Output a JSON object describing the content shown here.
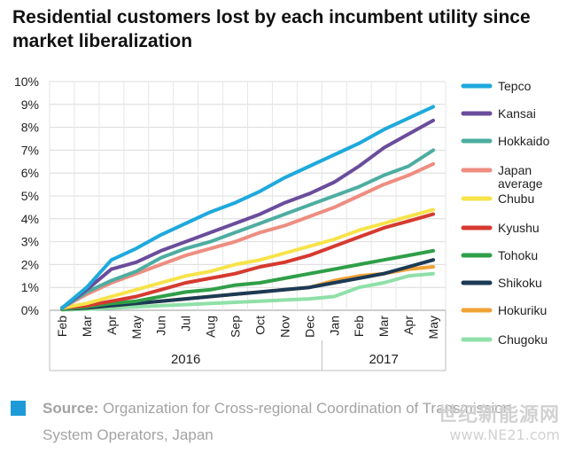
{
  "title": "Residential customers lost by each incumbent utility since market liberalization",
  "source": {
    "label": "Source:",
    "text": "Organization for Cross-regional Coordination of Transmission System Operators, Japan",
    "icon": "square-icon",
    "icon_color": "#1e9bd7"
  },
  "watermark": {
    "line1": "世纪新能源网",
    "line2": "www.NE21.com"
  },
  "chart_data": {
    "type": "line",
    "title": "Residential customers lost by each incumbent utility since market liberalization",
    "categories": [
      "Feb",
      "Mar",
      "Apr",
      "May",
      "Jun",
      "Jul",
      "Aug",
      "Sep",
      "Oct",
      "Nov",
      "Dec",
      "Jan",
      "Feb",
      "Mar",
      "Apr",
      "May"
    ],
    "year_groups": [
      {
        "label": "2016",
        "start": 0,
        "end": 10
      },
      {
        "label": "2017",
        "start": 11,
        "end": 15
      }
    ],
    "y_ticks": [
      "0%",
      "1%",
      "2%",
      "3%",
      "4%",
      "5%",
      "6%",
      "7%",
      "8%",
      "9%",
      "10%"
    ],
    "ylim": [
      0,
      10
    ],
    "grid": true,
    "legend_position": "right",
    "series": [
      {
        "name": "Tepco",
        "color": "#1ea9dc",
        "values": [
          0.1,
          1.0,
          2.2,
          2.7,
          3.3,
          3.8,
          4.3,
          4.7,
          5.2,
          5.8,
          6.3,
          6.8,
          7.3,
          7.9,
          8.4,
          8.9
        ]
      },
      {
        "name": "Kansai",
        "color": "#6a4c9c",
        "values": [
          0.1,
          0.9,
          1.8,
          2.1,
          2.6,
          3.0,
          3.4,
          3.8,
          4.2,
          4.7,
          5.1,
          5.6,
          6.3,
          7.1,
          7.7,
          8.3
        ]
      },
      {
        "name": "Hokkaido",
        "color": "#4dada0",
        "values": [
          0.1,
          0.8,
          1.3,
          1.7,
          2.3,
          2.7,
          3.0,
          3.4,
          3.8,
          4.2,
          4.6,
          5.0,
          5.4,
          5.9,
          6.3,
          7.0
        ]
      },
      {
        "name": "Japan average",
        "color": "#ee8d80",
        "values": [
          0.1,
          0.7,
          1.2,
          1.6,
          2.0,
          2.4,
          2.7,
          3.0,
          3.4,
          3.7,
          4.1,
          4.5,
          5.0,
          5.5,
          5.9,
          6.4
        ]
      },
      {
        "name": "Chubu",
        "color": "#f7e34a",
        "values": [
          0.1,
          0.3,
          0.6,
          0.9,
          1.2,
          1.5,
          1.7,
          2.0,
          2.2,
          2.5,
          2.8,
          3.1,
          3.5,
          3.8,
          4.1,
          4.4
        ]
      },
      {
        "name": "Kyushu",
        "color": "#d63a30",
        "values": [
          0.1,
          0.2,
          0.4,
          0.6,
          0.9,
          1.2,
          1.4,
          1.6,
          1.9,
          2.1,
          2.4,
          2.8,
          3.2,
          3.6,
          3.9,
          4.2
        ]
      },
      {
        "name": "Tohoku",
        "color": "#2f9f48",
        "values": [
          0.05,
          0.15,
          0.3,
          0.4,
          0.6,
          0.8,
          0.9,
          1.1,
          1.2,
          1.4,
          1.6,
          1.8,
          2.0,
          2.2,
          2.4,
          2.6
        ]
      },
      {
        "name": "Shikoku",
        "color": "#1b3a55",
        "values": [
          0.05,
          0.1,
          0.2,
          0.3,
          0.4,
          0.5,
          0.6,
          0.7,
          0.8,
          0.9,
          1.0,
          1.2,
          1.4,
          1.6,
          1.9,
          2.2
        ]
      },
      {
        "name": "Hokuriku",
        "color": "#f0a236",
        "values": [
          0.05,
          0.1,
          0.2,
          0.3,
          0.4,
          0.5,
          0.6,
          0.7,
          0.8,
          0.9,
          1.0,
          1.3,
          1.5,
          1.6,
          1.8,
          1.9
        ]
      },
      {
        "name": "Chugoku",
        "color": "#8fe0a8",
        "values": [
          0.02,
          0.05,
          0.1,
          0.15,
          0.2,
          0.25,
          0.3,
          0.35,
          0.4,
          0.45,
          0.5,
          0.6,
          1.0,
          1.2,
          1.5,
          1.6
        ]
      }
    ]
  }
}
